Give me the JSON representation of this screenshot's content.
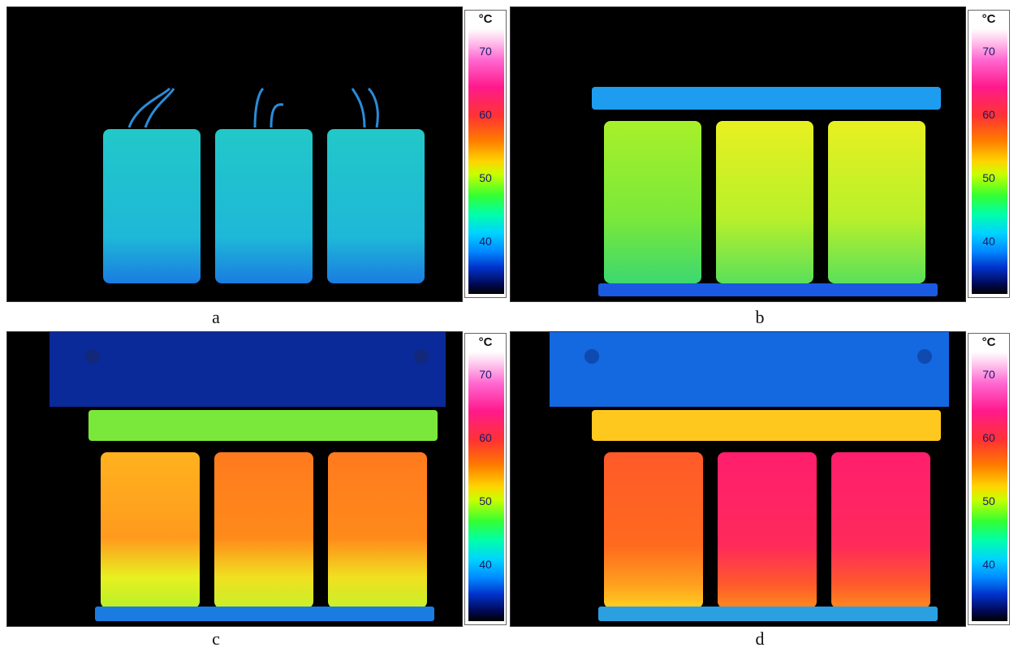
{
  "panels": [
    {
      "id": "a",
      "caption": "a",
      "scale": {
        "unit": "°C",
        "ticks": [
          "70",
          "60",
          "50",
          "40"
        ]
      }
    },
    {
      "id": "b",
      "caption": "b",
      "scale": {
        "unit": "°C",
        "ticks": [
          "70",
          "60",
          "50",
          "40"
        ]
      }
    },
    {
      "id": "c",
      "caption": "c",
      "scale": {
        "unit": "°C",
        "ticks": [
          "70",
          "60",
          "50",
          "40"
        ]
      }
    },
    {
      "id": "d",
      "caption": "d",
      "scale": {
        "unit": "°C",
        "ticks": [
          "70",
          "60",
          "50",
          "40"
        ]
      }
    }
  ],
  "colors": {
    "cool_blue": "#1e8cff",
    "cyan_green": "#19d6a0",
    "green": "#7af03a",
    "yellow": "#e8f020",
    "orange": "#ff8a1a",
    "red_orange": "#ff4a2a",
    "magenta": "#ff1e6e",
    "plate_blue": "#0a2a9a"
  }
}
